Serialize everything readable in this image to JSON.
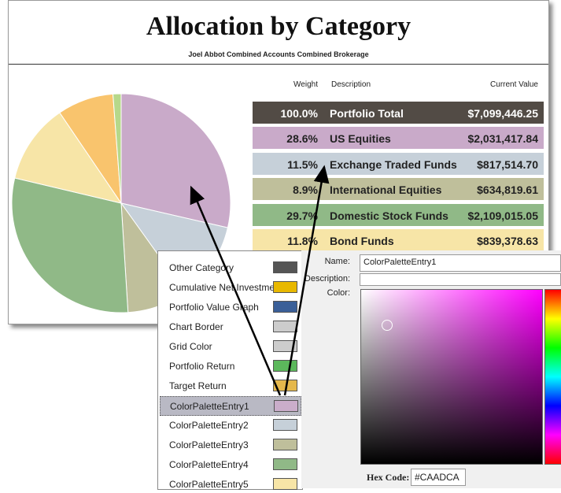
{
  "report": {
    "title": "Allocation by Category",
    "subtitle": "Joel Abbot Combined Accounts Combined Brokerage",
    "columns": [
      "Weight",
      "Description",
      "Current Value"
    ],
    "rows": [
      {
        "weight": "100.0%",
        "description": "Portfolio Total",
        "value": "$7,099,446.25",
        "color": "#524b45"
      },
      {
        "weight": "28.6%",
        "description": "US Equities",
        "value": "$2,031,417.84",
        "color": "#c9aac9"
      },
      {
        "weight": "11.5%",
        "description": "Exchange Traded Funds",
        "value": "$817,514.70",
        "color": "#c6d0d9"
      },
      {
        "weight": "8.9%",
        "description": "International Equities",
        "value": "$634,819.61",
        "color": "#bfbf9b"
      },
      {
        "weight": "29.7%",
        "description": "Domestic Stock Funds",
        "value": "$2,109,015.05",
        "color": "#90b987"
      },
      {
        "weight": "11.8%",
        "description": "Bond Funds",
        "value": "$839,378.63",
        "color": "#f7e5a7"
      }
    ],
    "pie": {
      "values": [
        28.6,
        11.5,
        8.9,
        29.7,
        11.8,
        8.3,
        1.2
      ],
      "colors": [
        "#c9aac9",
        "#c6d0d9",
        "#bfbf9b",
        "#90b987",
        "#f7e5a7",
        "#f9c46d",
        "#b6d88a"
      ]
    }
  },
  "settings": {
    "items": [
      {
        "label": "Other Category",
        "color": "#555555"
      },
      {
        "label": "Cumulative Net Investment",
        "color": "#e8b800"
      },
      {
        "label": "Portfolio Value Graph",
        "color": "#3a5f98"
      },
      {
        "label": "Chart Border",
        "color": "#cccccc"
      },
      {
        "label": "Grid Color",
        "color": "#cccccc"
      },
      {
        "label": "Portfolio Return",
        "color": "#5cb85c"
      },
      {
        "label": "Target Return",
        "color": "#e5b84c"
      },
      {
        "label": "ColorPaletteEntry1",
        "color": "#caadca"
      },
      {
        "label": "ColorPaletteEntry2",
        "color": "#c6d0d9"
      },
      {
        "label": "ColorPaletteEntry3",
        "color": "#bfbf9b"
      },
      {
        "label": "ColorPaletteEntry4",
        "color": "#90b987"
      },
      {
        "label": "ColorPaletteEntry5",
        "color": "#f7e5a7"
      }
    ],
    "selected": 7
  },
  "editor": {
    "name_label": "Name:",
    "name": "ColorPaletteEntry1",
    "description_label": "Description:",
    "color_label": "Color:",
    "hex_label": "Hex Code:",
    "hex": "#CAADCA"
  }
}
